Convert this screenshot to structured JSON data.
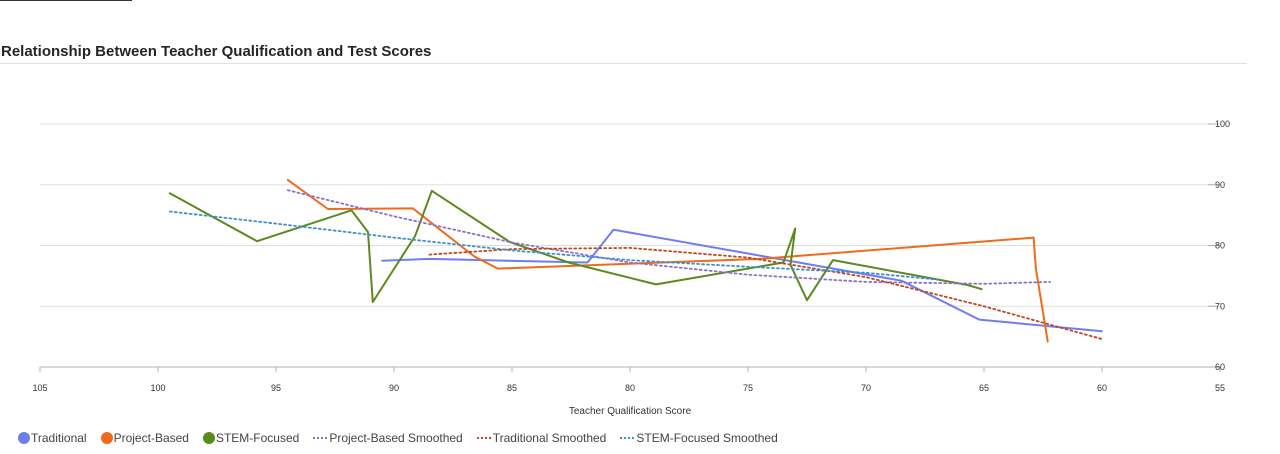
{
  "chart_data": {
    "type": "line",
    "title": "Relationship Between Teacher Qualification and Test Scores",
    "xlabel": "Teacher Qualification Score",
    "ylabel": "",
    "xlim": [
      105,
      55
    ],
    "ylim": [
      60,
      100
    ],
    "x_ticks": [
      105,
      100,
      95,
      90,
      85,
      80,
      75,
      70,
      65,
      60,
      55
    ],
    "y_ticks": [
      60,
      70,
      80,
      90,
      100
    ],
    "grid": true,
    "y_axis_position": "right",
    "legend_position": "bottom-left",
    "series": [
      {
        "name": "Traditional",
        "style": "solid",
        "color": "#6d7ff0",
        "points": [
          [
            90.5,
            77.5
          ],
          [
            88.5,
            77.8
          ],
          [
            81.8,
            77.2
          ],
          [
            80.7,
            82.6
          ],
          [
            68.5,
            74.2
          ],
          [
            65.2,
            67.8
          ],
          [
            60.0,
            65.9
          ]
        ]
      },
      {
        "name": "Project-Based",
        "style": "solid",
        "color": "#f06a1a",
        "points": [
          [
            94.5,
            90.8
          ],
          [
            92.8,
            86.0
          ],
          [
            89.2,
            86.1
          ],
          [
            86.6,
            78.2
          ],
          [
            85.6,
            76.2
          ],
          [
            74.5,
            77.8
          ],
          [
            62.9,
            81.3
          ],
          [
            62.8,
            76.2
          ],
          [
            62.3,
            64.2
          ]
        ]
      },
      {
        "name": "STEM-Focused",
        "style": "solid",
        "color": "#5b8a1f",
        "points": [
          [
            99.5,
            88.6
          ],
          [
            95.8,
            80.7
          ],
          [
            91.8,
            85.8
          ],
          [
            91.1,
            82.2
          ],
          [
            90.9,
            70.7
          ],
          [
            89.1,
            81.6
          ],
          [
            88.4,
            89.0
          ],
          [
            85.1,
            80.6
          ],
          [
            82.6,
            77.2
          ],
          [
            78.9,
            73.6
          ],
          [
            73.5,
            77.2
          ],
          [
            73.0,
            82.8
          ],
          [
            73.2,
            76.8
          ],
          [
            72.5,
            71.0
          ],
          [
            71.4,
            77.6
          ],
          [
            65.7,
            73.5
          ],
          [
            65.1,
            72.8
          ]
        ]
      },
      {
        "name": "Project-Based Smoothed",
        "style": "dotted",
        "color": "#8f6fc9",
        "points": [
          [
            94.5,
            89.1
          ],
          [
            90.0,
            84.8
          ],
          [
            85.0,
            80.5
          ],
          [
            80.0,
            77.2
          ],
          [
            75.0,
            75.2
          ],
          [
            70.0,
            74.0
          ],
          [
            65.0,
            73.7
          ],
          [
            62.2,
            74.0
          ]
        ]
      },
      {
        "name": "Traditional Smoothed",
        "style": "dotted",
        "color": "#c0461f",
        "points": [
          [
            88.5,
            78.5
          ],
          [
            85.0,
            79.4
          ],
          [
            80.0,
            79.6
          ],
          [
            75.0,
            78.0
          ],
          [
            70.0,
            74.8
          ],
          [
            65.0,
            70.0
          ],
          [
            60.0,
            64.6
          ]
        ]
      },
      {
        "name": "STEM-Focused Smoothed",
        "style": "dotted",
        "color": "#3f8fcc",
        "points": [
          [
            99.5,
            85.6
          ],
          [
            95.0,
            83.6
          ],
          [
            90.0,
            81.3
          ],
          [
            85.0,
            79.2
          ],
          [
            80.0,
            77.6
          ],
          [
            75.0,
            76.5
          ],
          [
            70.0,
            75.5
          ],
          [
            67.0,
            74.4
          ]
        ]
      }
    ]
  }
}
